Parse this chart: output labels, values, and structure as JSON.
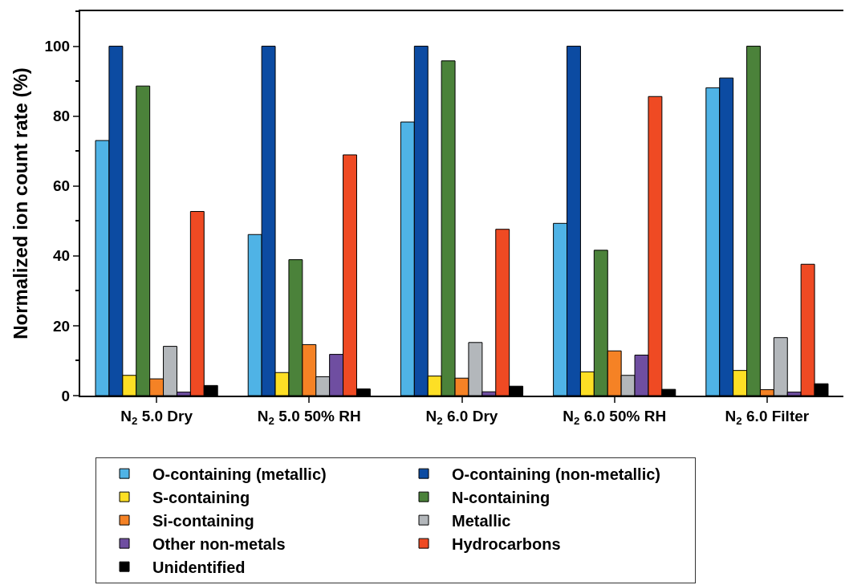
{
  "chart_data": {
    "type": "bar",
    "ylabel": "Normalized ion count rate (%)",
    "categories": [
      "N$_{2}$ 5.0 Dry",
      "N$_{2}$ 5.0 50% RH",
      "N$_{2}$ 6.0 Dry",
      "N$_{2}$ 6.0 50% RH",
      "N$_{2}$ 6.0 Filter"
    ],
    "series": [
      {
        "name": "O-containing (metallic)",
        "color": "#4fb3e6",
        "values": [
          73,
          46.1,
          78.3,
          49.3,
          88.1
        ]
      },
      {
        "name": "O-containing (non-metallic)",
        "color": "#0c4ba2",
        "values": [
          100,
          100,
          100,
          100,
          90.9
        ]
      },
      {
        "name": "S-containing",
        "color": "#fddf25",
        "values": [
          5.8,
          6.6,
          5.6,
          6.8,
          7.2
        ]
      },
      {
        "name": "N-containing",
        "color": "#4b823a",
        "values": [
          88.6,
          38.9,
          95.8,
          41.6,
          100
        ]
      },
      {
        "name": "Si-containing",
        "color": "#f58225",
        "values": [
          4.8,
          14.6,
          5.0,
          12.8,
          1.7
        ]
      },
      {
        "name": "Metallic",
        "color": "#b3b7bb",
        "values": [
          14.1,
          5.4,
          15.2,
          5.8,
          16.6
        ]
      },
      {
        "name": "Other non-metals",
        "color": "#6f4ea1",
        "values": [
          1.0,
          11.8,
          1.1,
          11.6,
          1.0
        ]
      },
      {
        "name": "Hydrocarbons",
        "color": "#ef4a23",
        "values": [
          52.7,
          68.9,
          47.6,
          85.6,
          37.6
        ]
      },
      {
        "name": "Unidentified",
        "color": "#000000",
        "values": [
          2.9,
          1.9,
          2.7,
          1.8,
          3.4
        ]
      }
    ],
    "ylim": [
      0,
      110
    ],
    "yticks": [
      0,
      20,
      40,
      60,
      80,
      100
    ],
    "grid": false,
    "legend": "bottom"
  }
}
